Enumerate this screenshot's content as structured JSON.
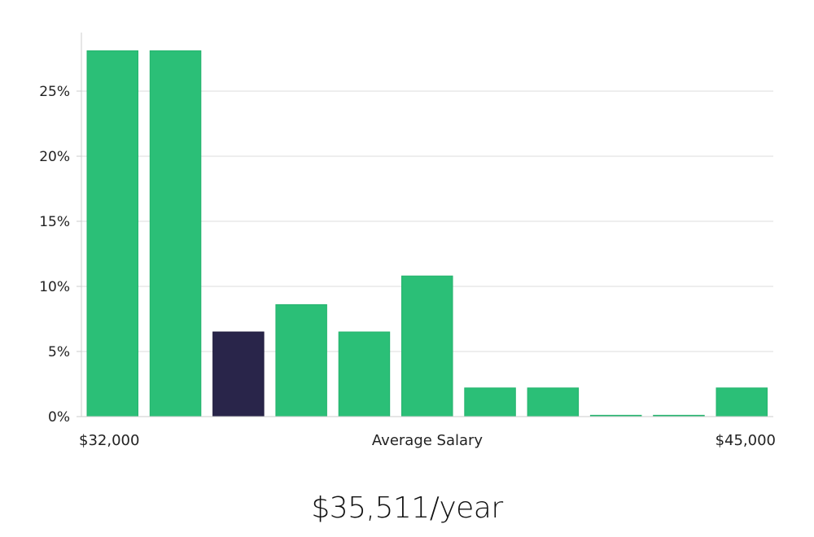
{
  "chart_data": {
    "type": "bar",
    "title": "",
    "xlabel": "Average Salary",
    "ylabel": "",
    "x_range_labels": {
      "min": "$32,000",
      "max": "$45,000"
    },
    "ylim": [
      0,
      29.5
    ],
    "yticks": [
      0,
      5,
      10,
      15,
      20,
      25
    ],
    "ytick_labels": [
      "0%",
      "5%",
      "10%",
      "15%",
      "20%",
      "25%"
    ],
    "values": [
      28.1,
      28.1,
      6.5,
      8.6,
      6.5,
      10.8,
      2.2,
      2.2,
      0.1,
      0.1,
      2.2
    ],
    "highlight_index": 2,
    "grid": true,
    "colors": {
      "bar": "#2bbf77",
      "highlight": "#29254a",
      "grid": "#dddddd",
      "axis": "#cccccc"
    }
  },
  "summary": {
    "average_salary": "$35,511/year"
  }
}
